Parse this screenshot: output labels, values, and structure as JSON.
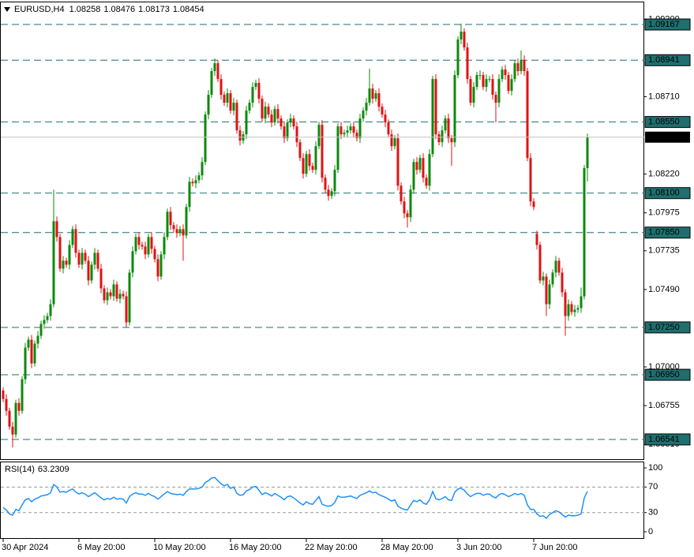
{
  "chart_data": {
    "type": "candlestick",
    "symbol": "EURUSD,H4",
    "x": [
      "30 Apr 2024",
      null,
      null,
      null,
      null,
      null,
      null,
      null,
      null,
      null,
      null,
      null,
      null,
      null,
      null,
      null,
      null,
      null,
      null,
      null,
      null,
      null,
      null,
      null,
      "6 May 20:00",
      null,
      null,
      null,
      null,
      null,
      null,
      null,
      null,
      null,
      null,
      null,
      null,
      null,
      null,
      null,
      null,
      null,
      null,
      null,
      null,
      null,
      null,
      null,
      "10 May 20:00",
      null,
      null,
      null,
      null,
      null,
      null,
      null,
      null,
      null,
      null,
      null,
      null,
      null,
      null,
      null,
      null,
      null,
      null,
      null,
      null,
      null,
      null,
      null,
      "16 May 20:00",
      null,
      null,
      null,
      null,
      null,
      null,
      null,
      null,
      null,
      null,
      null,
      null,
      null,
      null,
      null,
      null,
      null,
      null,
      null,
      null,
      null,
      null,
      null,
      "22 May 20:00",
      null,
      null,
      null,
      null,
      null,
      null,
      null,
      null,
      null,
      null,
      null,
      null,
      null,
      null,
      null,
      null,
      null,
      null,
      null,
      null,
      null,
      null,
      null,
      "28 May 20:00",
      null,
      null,
      null,
      null,
      null,
      null,
      null,
      null,
      null,
      null,
      null,
      null,
      null,
      null,
      null,
      null,
      null,
      null,
      null,
      null,
      null,
      null,
      null,
      "3 Jun 20:00",
      null,
      null,
      null,
      null,
      null,
      null,
      null,
      null,
      null,
      null,
      null,
      null,
      null,
      null,
      null,
      null,
      null,
      null,
      null,
      null,
      null,
      null,
      null,
      "7 Jun 20:00",
      null,
      null,
      null,
      null,
      null,
      null,
      null,
      null,
      null,
      null,
      null,
      null,
      null,
      null,
      null,
      null,
      null
    ],
    "open": [
      1.0685,
      1.06797,
      1.06722,
      1.06622,
      1.06572,
      1.06772,
      1.06722,
      1.06922,
      1.07122,
      1.07172,
      1.07022,
      1.07147,
      1.07197,
      1.07272,
      1.07297,
      1.07322,
      1.07397,
      1.07922,
      1.07822,
      1.07622,
      1.07672,
      1.07647,
      1.07772,
      1.07872,
      1.07722,
      1.07647,
      1.07722,
      1.07672,
      1.07547,
      1.07647,
      1.07722,
      1.07622,
      1.07497,
      1.07422,
      1.07472,
      1.07447,
      1.07522,
      1.07432,
      1.07462,
      1.07447,
      1.07282,
      1.07597,
      1.07732,
      1.07822,
      1.07772,
      1.07762,
      1.07712,
      1.07822,
      1.07747,
      1.07682,
      1.07572,
      1.07712,
      1.07822,
      1.07982,
      1.07897,
      1.07872,
      1.07847,
      1.07872,
      1.07832,
      1.08012,
      1.08172,
      1.08162,
      1.08182,
      1.08212,
      1.08297,
      1.08597,
      1.08722,
      1.08872,
      1.08922,
      1.08822,
      1.08722,
      1.08672,
      1.08732,
      1.08622,
      1.08672,
      1.08497,
      1.08432,
      1.08472,
      1.08622,
      1.08672,
      1.08772,
      1.08797,
      1.08697,
      1.08572,
      1.08647,
      1.08597,
      1.08547,
      1.08632,
      1.08572,
      1.08522,
      1.08447,
      1.08547,
      1.08572,
      1.08522,
      1.08422,
      1.08322,
      1.08222,
      1.08347,
      1.08272,
      1.08247,
      1.08397,
      1.08532,
      1.08197,
      1.08122,
      1.08082,
      1.08112,
      1.08247,
      1.08522,
      1.08472,
      1.08482,
      1.08497,
      1.08522,
      1.08482,
      1.08447,
      1.08572,
      1.08622,
      1.08672,
      1.08762,
      1.08697,
      1.08732,
      1.08647,
      1.08597,
      1.08547,
      1.08472,
      1.08397,
      1.08447,
      1.08147,
      1.08047,
      1.07972,
      1.07947,
      1.08122,
      1.08297,
      1.08247,
      1.08322,
      1.08197,
      1.08147,
      1.08347,
      1.08822,
      1.08472,
      1.08422,
      1.08497,
      1.08572,
      1.08447,
      1.08422,
      1.08847,
      1.09072,
      1.09122,
      1.09022,
      1.08822,
      1.08672,
      1.08772,
      1.08847,
      1.08847,
      1.08772,
      1.08822,
      1.08822,
      1.08722,
      1.08672,
      1.08822,
      1.08882,
      1.08847,
      1.08747,
      1.08822,
      1.08922,
      1.08872,
      1.08942,
      1.08872,
      1.08322,
      1.08047,
      1.07842,
      1.07772,
      1.07547,
      1.07572,
      1.07397,
      1.07522,
      1.07597,
      1.07672,
      1.07597,
      1.07472,
      1.07322,
      1.07397,
      1.07347,
      1.07362,
      1.07372,
      1.07447,
      1.08258
    ],
    "high": [
      1.0687,
      1.06827,
      1.06742,
      1.06652,
      1.06792,
      1.06802,
      1.06942,
      1.07152,
      1.07192,
      1.07202,
      1.07167,
      1.07227,
      1.07292,
      1.07327,
      1.07342,
      1.07427,
      1.08122,
      1.07952,
      1.07842,
      1.07702,
      1.07692,
      1.07802,
      1.07892,
      1.07902,
      1.07742,
      1.07752,
      1.07742,
      1.07702,
      1.07667,
      1.07752,
      1.07742,
      1.07652,
      1.07517,
      1.07502,
      1.07492,
      1.07552,
      1.07542,
      1.07492,
      1.07482,
      1.07477,
      1.07617,
      1.07762,
      1.07842,
      1.07852,
      1.07792,
      1.07792,
      1.07842,
      1.07852,
      1.07767,
      1.07712,
      1.07732,
      1.07852,
      1.08002,
      1.08012,
      1.07917,
      1.07902,
      1.07892,
      1.07902,
      1.08032,
      1.08202,
      1.08192,
      1.08212,
      1.08232,
      1.08327,
      1.08617,
      1.08752,
      1.08892,
      1.08952,
      1.08942,
      1.08852,
      1.08742,
      1.08762,
      1.08752,
      1.08702,
      1.08692,
      1.08527,
      1.08492,
      1.08652,
      1.08692,
      1.08802,
      1.08817,
      1.08827,
      1.08717,
      1.08677,
      1.08667,
      1.08627,
      1.08652,
      1.08662,
      1.08592,
      1.08552,
      1.08567,
      1.08602,
      1.08592,
      1.08552,
      1.08442,
      1.08352,
      1.08367,
      1.08377,
      1.08292,
      1.08427,
      1.08552,
      1.08562,
      1.08217,
      1.08152,
      1.08132,
      1.08277,
      1.08542,
      1.08552,
      1.08502,
      1.08527,
      1.08542,
      1.08552,
      1.08502,
      1.08602,
      1.08642,
      1.08702,
      1.08887,
      1.08792,
      1.08752,
      1.08762,
      1.08667,
      1.08627,
      1.08567,
      1.08502,
      1.08467,
      1.08477,
      1.08167,
      1.08077,
      1.07992,
      1.08152,
      1.08317,
      1.08327,
      1.08342,
      1.08352,
      1.08217,
      1.08377,
      1.08842,
      1.08852,
      1.08492,
      1.08527,
      1.08592,
      1.08602,
      1.08467,
      1.08877,
      1.09092,
      1.09172,
      1.09142,
      1.09052,
      1.08842,
      1.08802,
      1.08867,
      1.08877,
      1.08867,
      1.08852,
      1.08842,
      1.08852,
      1.08742,
      1.08852,
      1.08902,
      1.08912,
      1.08867,
      1.08852,
      1.08942,
      1.08952,
      1.09002,
      1.08972,
      1.08892,
      1.08352,
      1.08067,
      1.07862,
      1.07792,
      1.07602,
      1.07592,
      1.07552,
      1.07617,
      1.07702,
      1.07692,
      1.07627,
      1.07492,
      1.07427,
      1.07417,
      1.07392,
      1.07392,
      1.07502,
      1.08278,
      1.08476
    ],
    "low": [
      1.06777,
      1.06692,
      1.06602,
      1.0649,
      1.06552,
      1.06692,
      1.06702,
      1.06892,
      1.07102,
      1.06992,
      1.07002,
      1.07117,
      1.07177,
      1.07242,
      1.07277,
      1.07292,
      1.07377,
      1.07792,
      1.07602,
      1.07592,
      1.07627,
      1.07617,
      1.07752,
      1.07692,
      1.07627,
      1.07617,
      1.07652,
      1.07517,
      1.07527,
      1.07617,
      1.07602,
      1.07467,
      1.07402,
      1.07392,
      1.07427,
      1.07417,
      1.07412,
      1.07402,
      1.07427,
      1.07252,
      1.07262,
      1.07567,
      1.07712,
      1.07742,
      1.07742,
      1.07682,
      1.07692,
      1.07717,
      1.07662,
      1.07542,
      1.07552,
      1.07682,
      1.07802,
      1.07867,
      1.07852,
      1.07817,
      1.07827,
      1.07672,
      1.07812,
      1.07982,
      1.08142,
      1.08132,
      1.08162,
      1.08182,
      1.08277,
      1.08567,
      1.08702,
      1.08842,
      1.08802,
      1.08692,
      1.08652,
      1.08642,
      1.08602,
      1.08592,
      1.08477,
      1.08402,
      1.08412,
      1.08442,
      1.08602,
      1.08642,
      1.08752,
      1.08667,
      1.08552,
      1.08542,
      1.08577,
      1.08517,
      1.08527,
      1.08542,
      1.08502,
      1.08417,
      1.08427,
      1.08517,
      1.08502,
      1.08392,
      1.08302,
      1.08192,
      1.08202,
      1.08242,
      1.08227,
      1.08217,
      1.08377,
      1.08167,
      1.08102,
      1.08052,
      1.08062,
      1.08082,
      1.08227,
      1.08442,
      1.08452,
      1.08452,
      1.08477,
      1.08452,
      1.08427,
      1.08417,
      1.08552,
      1.08592,
      1.08652,
      1.08667,
      1.08677,
      1.08617,
      1.08577,
      1.08517,
      1.08452,
      1.08367,
      1.08377,
      1.08117,
      1.08027,
      1.07942,
      1.07882,
      1.07917,
      1.08102,
      1.08217,
      1.08227,
      1.08167,
      1.08127,
      1.08117,
      1.08327,
      1.08442,
      1.08402,
      1.08392,
      1.08477,
      1.08417,
      1.08272,
      1.08392,
      1.08827,
      1.09042,
      1.09002,
      1.08792,
      1.08652,
      1.08642,
      1.08752,
      1.08817,
      1.08752,
      1.08742,
      1.08802,
      1.08692,
      1.08547,
      1.08642,
      1.08802,
      1.08817,
      1.08727,
      1.08717,
      1.08802,
      1.08842,
      1.08852,
      1.08842,
      1.08302,
      1.08017,
      1.07992,
      1.07742,
      1.07527,
      1.07517,
      1.07322,
      1.07367,
      1.07502,
      1.07567,
      1.07577,
      1.07442,
      1.07197,
      1.07292,
      1.07327,
      1.07317,
      1.07342,
      1.07342,
      1.07427,
      1.08173
    ],
    "close": [
      1.06797,
      1.06722,
      1.06622,
      1.06572,
      1.06772,
      1.06722,
      1.06922,
      1.07122,
      1.07172,
      1.07022,
      1.07147,
      1.07197,
      1.07272,
      1.07297,
      1.07322,
      1.07397,
      1.07922,
      1.07822,
      1.07622,
      1.07672,
      1.07647,
      1.07772,
      1.07872,
      1.07722,
      1.07647,
      1.07722,
      1.07672,
      1.07547,
      1.07647,
      1.07722,
      1.07622,
      1.07497,
      1.07422,
      1.07472,
      1.07447,
      1.07522,
      1.07432,
      1.07462,
      1.07447,
      1.07282,
      1.07597,
      1.07732,
      1.07822,
      1.07772,
      1.07762,
      1.07712,
      1.07822,
      1.07747,
      1.07682,
      1.07572,
      1.07712,
      1.07822,
      1.07982,
      1.07897,
      1.07872,
      1.07847,
      1.07872,
      1.07832,
      1.08012,
      1.08172,
      1.08162,
      1.08182,
      1.08212,
      1.08297,
      1.08597,
      1.08722,
      1.08872,
      1.08922,
      1.08822,
      1.08722,
      1.08672,
      1.08732,
      1.08622,
      1.08672,
      1.08497,
      1.08432,
      1.08472,
      1.08622,
      1.08672,
      1.08772,
      1.08797,
      1.08697,
      1.08572,
      1.08647,
      1.08597,
      1.08547,
      1.08632,
      1.08572,
      1.08522,
      1.08447,
      1.08547,
      1.08572,
      1.08522,
      1.08422,
      1.08322,
      1.08222,
      1.08347,
      1.08272,
      1.08247,
      1.08397,
      1.08532,
      1.08197,
      1.08122,
      1.08082,
      1.08112,
      1.08247,
      1.08522,
      1.08472,
      1.08482,
      1.08497,
      1.08522,
      1.08482,
      1.08447,
      1.08572,
      1.08622,
      1.08672,
      1.08762,
      1.08697,
      1.08732,
      1.08647,
      1.08597,
      1.08547,
      1.08472,
      1.08397,
      1.08447,
      1.08147,
      1.08047,
      1.07972,
      1.07947,
      1.08122,
      1.08297,
      1.08247,
      1.08322,
      1.08197,
      1.08147,
      1.08347,
      1.08822,
      1.08472,
      1.08422,
      1.08497,
      1.08572,
      1.08447,
      1.08422,
      1.08847,
      1.09072,
      1.09122,
      1.09022,
      1.08822,
      1.08672,
      1.08772,
      1.08847,
      1.08847,
      1.08772,
      1.08822,
      1.08822,
      1.08722,
      1.08672,
      1.08822,
      1.08882,
      1.08847,
      1.08747,
      1.08822,
      1.08922,
      1.08872,
      1.08942,
      1.08872,
      1.08322,
      1.08047,
      1.08012,
      1.07772,
      1.07547,
      1.07572,
      1.07397,
      1.07522,
      1.07597,
      1.07672,
      1.07597,
      1.07472,
      1.07322,
      1.07397,
      1.07347,
      1.07362,
      1.07372,
      1.07447,
      1.08258,
      1.08454
    ],
    "colors": {
      "up": "#0c8a0c",
      "down": "#e01212",
      "price_line": "#c0c0c0"
    },
    "ylim": [
      1.06416,
      1.09312
    ],
    "yticks": [
      {
        "value": 1.092,
        "label": "1.09200"
      },
      {
        "value": 1.0871,
        "label": "1.08710"
      },
      {
        "value": 1.0822,
        "label": "1.08220"
      },
      1.07975,
      1.07735,
      {
        "value": 1.0749,
        "label": "1.07490"
      },
      {
        "value": 1.07,
        "label": "1.07000"
      },
      1.06755,
      {
        "value": 1.0651,
        "label": "1.06510"
      }
    ],
    "hlines": {
      "color": "#1f6f6f",
      "levels": [
        1.09167,
        1.08941,
        {
          "value": 1.0855,
          "label": "1.08550"
        },
        {
          "value": 1.081,
          "label": "1.08100"
        },
        {
          "value": 1.0785,
          "label": "1.07850"
        },
        {
          "value": 1.0725,
          "label": "1.07250"
        },
        {
          "value": 1.0695,
          "label": "1.06950"
        },
        1.06541
      ]
    },
    "indicator": {
      "type": "line",
      "name": "RSI(14)",
      "color": "#1e90ff",
      "ylim": [
        -11.1,
        109.9
      ],
      "yticks": [
        0,
        30,
        70,
        100
      ],
      "levels": [
        70,
        30
      ],
      "values": [
        38,
        34,
        28,
        26,
        35,
        33,
        42,
        50,
        52,
        47,
        51,
        53,
        56,
        57,
        58,
        61,
        74,
        70,
        62,
        63,
        62,
        65,
        67,
        62,
        59,
        61,
        59,
        55,
        58,
        61,
        57,
        53,
        50,
        52,
        51,
        54,
        51,
        52,
        51,
        45,
        55,
        59,
        61,
        59,
        59,
        57,
        60,
        57,
        55,
        51,
        55,
        59,
        63,
        60,
        59,
        58,
        59,
        57,
        63,
        67,
        67,
        67,
        68,
        70,
        77,
        80,
        84,
        85,
        80,
        75,
        72,
        74,
        68,
        70,
        60,
        57,
        58,
        64,
        66,
        70,
        71,
        65,
        58,
        61,
        59,
        56,
        60,
        57,
        54,
        50,
        55,
        56,
        53,
        49,
        45,
        42,
        47,
        44,
        43,
        49,
        55,
        43,
        41,
        40,
        41,
        46,
        56,
        54,
        54,
        55,
        56,
        54,
        52,
        57,
        59,
        61,
        64,
        61,
        62,
        58,
        56,
        54,
        51,
        48,
        50,
        40,
        37,
        35,
        34,
        42,
        49,
        47,
        50,
        45,
        43,
        50,
        63,
        52,
        50,
        52,
        55,
        50,
        49,
        62,
        67,
        68,
        65,
        59,
        55,
        58,
        60,
        60,
        57,
        59,
        59,
        55,
        53,
        58,
        60,
        58,
        55,
        57,
        60,
        58,
        60,
        57,
        42,
        35,
        35,
        28,
        24,
        25,
        21,
        27,
        30,
        33,
        31,
        27,
        23,
        26,
        25,
        25,
        26,
        28,
        53,
        63.2309
      ]
    }
  }
}
